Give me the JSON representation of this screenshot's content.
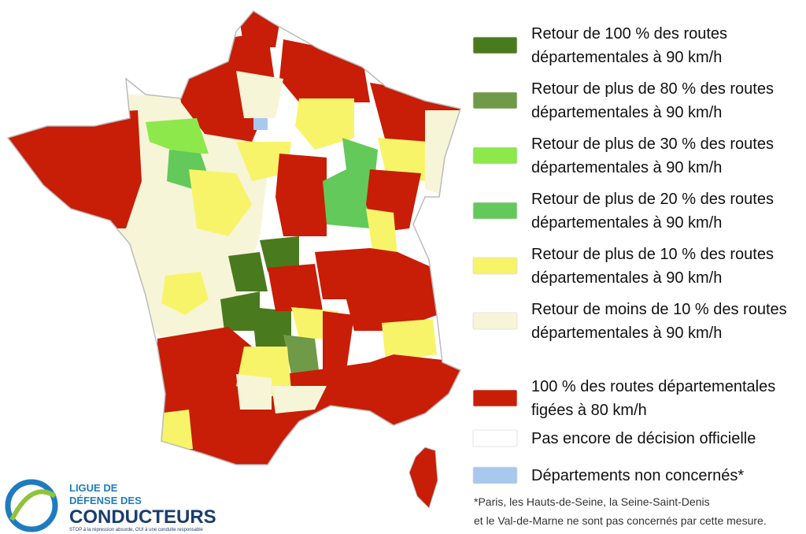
{
  "legend": [
    {
      "lines": [
        "Retour de 100 % des routes",
        "départementales à 90 km/h"
      ],
      "color": "#4a7a1e"
    },
    {
      "lines": [
        "Retour de plus de 80 % des routes",
        "départementales à 90 km/h"
      ],
      "color": "#6f9a47"
    },
    {
      "lines": [
        "Retour de plus de 30 % des routes",
        "départementales à 90 km/h"
      ],
      "color": "#8de84c"
    },
    {
      "lines": [
        "Retour de plus de 20 % des routes",
        "départementales à 90 km/h"
      ],
      "color": "#62c95a"
    },
    {
      "lines": [
        "Retour de plus de 10 % des routes",
        "départementales à 90 km/h"
      ],
      "color": "#f8f46a"
    },
    {
      "lines": [
        "Retour de moins de 10 % des routes",
        "départementales à 90 km/h"
      ],
      "color": "#f6f5d8"
    },
    {
      "lines": [
        "100 % des routes départementales",
        "figées à 80 km/h"
      ],
      "color": "#c81d06"
    },
    {
      "lines": [
        "Pas encore de décision officielle"
      ],
      "color": "#ffffff"
    },
    {
      "lines": [
        "Départements non concernés*"
      ],
      "color": "#a8c8ee"
    }
  ],
  "footnote": [
    "*Paris, les Hauts-de-Seine, la Seine-Saint-Denis",
    "et le Val-de-Marne ne sont pas concernés par cette mesure."
  ],
  "logo": {
    "line1": "LIGUE DE",
    "line2": "DÉFENSE DES",
    "line3": "CONDUCTEURS",
    "tagline": "STOP à la répression absurde, OUI à une conduite responsable"
  }
}
